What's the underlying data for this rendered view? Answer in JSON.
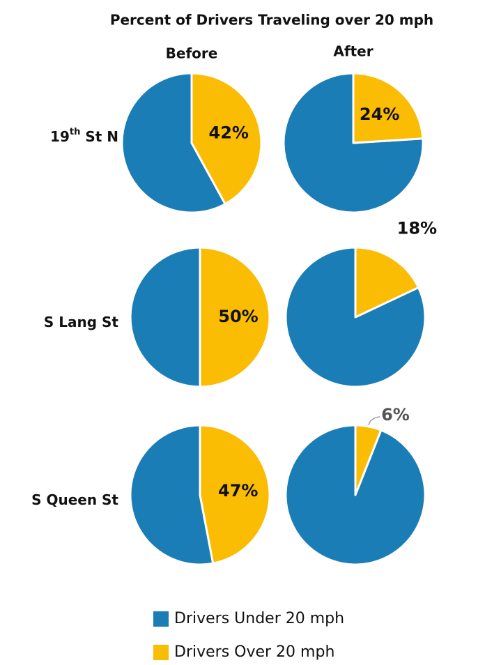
{
  "chart_data": {
    "type": "pie",
    "title": "Percent of Drivers Traveling over 20 mph",
    "column_labels": [
      "Before",
      "After"
    ],
    "series": [
      {
        "name": "Drivers Under 20 mph",
        "color": "#1a7db6"
      },
      {
        "name": "Drivers Over 20 mph",
        "color": "#fbbc04"
      }
    ],
    "rows": [
      {
        "label": [
          "19",
          "th",
          " St N"
        ],
        "pies": [
          {
            "values": [
              58,
              42
            ],
            "value_label": "42%"
          },
          {
            "values": [
              76,
              24
            ],
            "value_label": "24%"
          }
        ]
      },
      {
        "label": [
          "S Lang St"
        ],
        "pies": [
          {
            "values": [
              50,
              50
            ],
            "value_label": "50%"
          },
          {
            "values": [
              82,
              18
            ],
            "value_label": "18%"
          }
        ]
      },
      {
        "label": [
          "S Queen St"
        ],
        "pies": [
          {
            "values": [
              53,
              47
            ],
            "value_label": "47%"
          },
          {
            "values": [
              94,
              6
            ],
            "value_label": "6%"
          }
        ]
      }
    ]
  }
}
